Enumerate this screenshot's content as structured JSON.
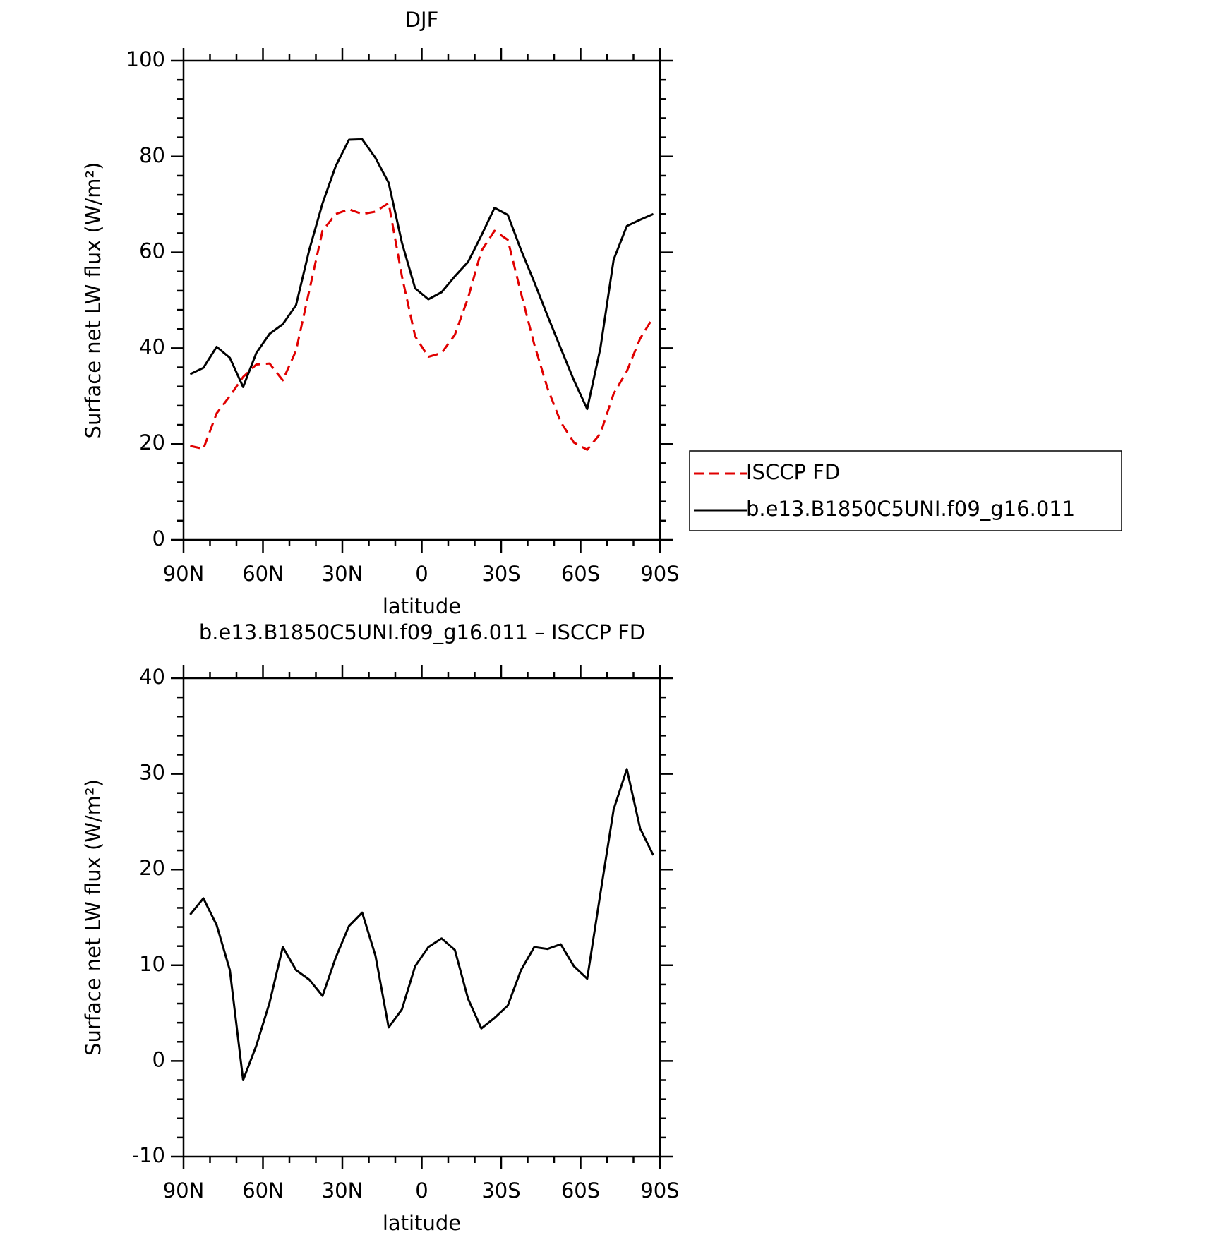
{
  "chart_data": [
    {
      "type": "line",
      "title": "DJF",
      "xlabel": "latitude",
      "ylabel": "Surface net LW flux (W/m²)",
      "x": [
        87.5,
        82.5,
        77.5,
        72.5,
        67.5,
        62.5,
        57.5,
        52.5,
        47.5,
        42.5,
        37.5,
        32.5,
        27.5,
        22.5,
        17.5,
        12.5,
        7.5,
        2.5,
        -2.5,
        -7.5,
        -12.5,
        -17.5,
        -22.5,
        -27.5,
        -32.5,
        -37.5,
        -42.5,
        -47.5,
        -52.5,
        -57.5,
        -62.5,
        -67.5,
        -72.5,
        -77.5,
        -82.5,
        -87.5
      ],
      "series": [
        {
          "name": "ISCCP FD",
          "color": "#e00000",
          "dash": true,
          "values": [
            19.6,
            19,
            26.4,
            30,
            34,
            36.6,
            36.8,
            33.3,
            39.5,
            52,
            64.5,
            68,
            69,
            68,
            68.5,
            70.3,
            55,
            42.5,
            38.2,
            39,
            42.8,
            50.5,
            60.3,
            64.5,
            62.6,
            51.5,
            40.8,
            31.7,
            24.6,
            20.3,
            18.8,
            22.2,
            30.5,
            35.2,
            42,
            46.5
          ]
        },
        {
          "name": "b.e13.B1850C5UNI.f09_g16.011",
          "color": "#000000",
          "dash": false,
          "values": [
            34.6,
            35.9,
            40.3,
            38,
            31.9,
            39,
            43,
            45,
            49,
            60.5,
            70.2,
            78,
            83.5,
            83.6,
            79.7,
            74.5,
            62,
            52.5,
            50.2,
            51.7,
            55,
            58,
            63.5,
            69.3,
            67.8,
            60.5,
            53.8,
            46.8,
            40,
            33.3,
            27.3,
            40,
            58.5,
            65.5,
            66.8,
            68
          ]
        }
      ],
      "xlim": [
        90,
        -90
      ],
      "xticks": [
        {
          "value": 90,
          "label": "90N"
        },
        {
          "value": 60,
          "label": "60N"
        },
        {
          "value": 30,
          "label": "30N"
        },
        0,
        {
          "value": -30,
          "label": "30S"
        },
        {
          "value": -60,
          "label": "60S"
        },
        {
          "value": -90,
          "label": "90S"
        }
      ],
      "ylim": [
        0,
        100
      ],
      "yticks": [
        0,
        20,
        40,
        60,
        80,
        100
      ],
      "xminor_divisions": 3,
      "yminor_divisions": 5,
      "legend": "right"
    },
    {
      "type": "line",
      "title": "b.e13.B1850C5UNI.f09_g16.011 – ISCCP FD",
      "xlabel": "latitude",
      "ylabel": "Surface net LW flux (W/m²)",
      "x": [
        87.5,
        82.5,
        77.5,
        72.5,
        67.5,
        62.5,
        57.5,
        52.5,
        47.5,
        42.5,
        37.5,
        32.5,
        27.5,
        22.5,
        17.5,
        12.5,
        7.5,
        2.5,
        -2.5,
        -7.5,
        -12.5,
        -17.5,
        -22.5,
        -27.5,
        -32.5,
        -37.5,
        -42.5,
        -47.5,
        -52.5,
        -57.5,
        -62.5,
        -67.5,
        -72.5,
        -77.5,
        -82.5,
        -87.5
      ],
      "series": [
        {
          "color": "#000000",
          "dash": false,
          "values": [
            15.3,
            17.0,
            14.2,
            9.5,
            -2.0,
            1.6,
            6.1,
            11.9,
            9.5,
            8.5,
            6.8,
            10.8,
            14.1,
            15.5,
            11,
            3.5,
            5.4,
            9.9,
            11.9,
            12.8,
            11.6,
            6.5,
            3.4,
            4.5,
            5.8,
            9.5,
            11.9,
            11.7,
            12.2,
            9.9,
            8.6,
            17.5,
            26.3,
            30.5,
            24.3,
            21.5
          ]
        }
      ],
      "xlim": [
        90,
        -90
      ],
      "xticks": [
        {
          "value": 90,
          "label": "90N"
        },
        {
          "value": 60,
          "label": "60N"
        },
        {
          "value": 30,
          "label": "30N"
        },
        0,
        {
          "value": -30,
          "label": "30S"
        },
        {
          "value": -60,
          "label": "60S"
        },
        {
          "value": -90,
          "label": "90S"
        }
      ],
      "ylim": [
        -10,
        40
      ],
      "yticks": [
        -10,
        0,
        10,
        20,
        30,
        40
      ],
      "xminor_divisions": 3,
      "yminor_divisions": 5
    }
  ]
}
